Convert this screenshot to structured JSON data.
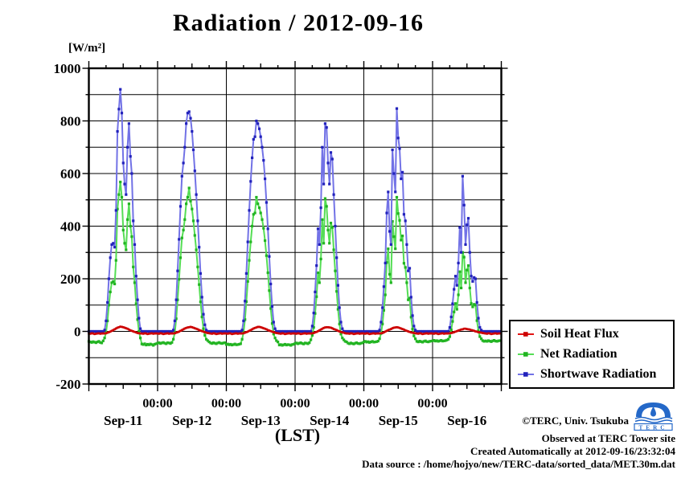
{
  "title": "Radiation / 2012-09-16",
  "y_axis": {
    "unit": "[W/m²]",
    "ticks": [
      1000,
      800,
      600,
      400,
      200,
      0,
      -200
    ],
    "max": 1000,
    "min": -200,
    "minor_step": 100
  },
  "x_axis": {
    "time_labels": [
      "00:00",
      "00:00",
      "00:00",
      "00:00",
      "00:00"
    ],
    "day_labels": [
      "Sep-11",
      "Sep-12",
      "Sep-13",
      "Sep-14",
      "Sep-15",
      "Sep-16"
    ],
    "axis_label": "(LST)"
  },
  "legend": {
    "items": [
      {
        "label": "Soil Heat Flux",
        "line_color": "#e21313",
        "marker_color": "#cc0000"
      },
      {
        "label": "Net Radiation",
        "line_color": "#55dd55",
        "marker_color": "#22b422"
      },
      {
        "label": "Shortwave Radiation",
        "line_color": "#7272e6",
        "marker_color": "#2222bb"
      }
    ]
  },
  "credits": {
    "copyright": "©TERC, Univ. Tsukuba",
    "observed": "Observed at TERC Tower site",
    "created": "Created Automatically at 2012-09-16/23:32:04",
    "source": "Data source : /home/hojyo/new/TERC-data/sorted_data/MET.30m.dat",
    "logo_text": "TERC"
  },
  "chart_data": {
    "type": "line",
    "title": "Radiation / 2012-09-16",
    "ylabel": "[W/m²]",
    "xlabel": "(LST)",
    "ylim": [
      -200,
      1000
    ],
    "x_range_hours": [
      0,
      144
    ],
    "sample_interval_hours": 0.5,
    "grid": "on",
    "legend_position": "outside-right-bottom",
    "series_meta": [
      {
        "name": "Net Radiation",
        "key": "net",
        "line_color": "#55dd55",
        "marker_color": "#22b422",
        "line_width": 2,
        "marker_size": 3.2
      },
      {
        "name": "Shortwave Radiation",
        "key": "shortwave",
        "line_color": "#7272e6",
        "marker_color": "#2222bb",
        "line_width": 2,
        "marker_size": 3.2
      },
      {
        "name": "Soil Heat Flux",
        "key": "soil",
        "line_color": "#e21313",
        "marker_color": "#cc0000",
        "line_width": 2.6,
        "marker_size": 2.6
      }
    ],
    "days": [
      {
        "date": "Sep-11",
        "shortwave": [
          0,
          0,
          0,
          0,
          0,
          0,
          0,
          0,
          0,
          0,
          0,
          5,
          40,
          110,
          200,
          280,
          330,
          335,
          320,
          460,
          760,
          845,
          920,
          830,
          640,
          560,
          520,
          700,
          790,
          665,
          600,
          420,
          330,
          210,
          120,
          50,
          10,
          0,
          0,
          0,
          0,
          0,
          0,
          0,
          0,
          0,
          0,
          0
        ],
        "net": [
          -38,
          -40,
          -42,
          -39,
          -41,
          -43,
          -40,
          -38,
          -42,
          -44,
          -36,
          -25,
          -5,
          40,
          100,
          150,
          185,
          190,
          180,
          270,
          465,
          520,
          568,
          510,
          385,
          335,
          310,
          425,
          485,
          400,
          360,
          245,
          185,
          105,
          45,
          0,
          -25,
          -48,
          -50,
          -47,
          -52,
          -49,
          -51,
          -48,
          -50,
          -53,
          -49,
          -47
        ],
        "soil": [
          -8,
          -9,
          -7,
          -8,
          -10,
          -9,
          -8,
          -7,
          -9,
          -8,
          -8,
          -8,
          -7,
          -5,
          -3,
          -1,
          2,
          5,
          8,
          11,
          14,
          16,
          18,
          17,
          16,
          14,
          12,
          10,
          7,
          4,
          2,
          0,
          -2,
          -4,
          -6,
          -7,
          -8,
          -8,
          -9,
          -7,
          -8,
          -10,
          -9,
          -8,
          -7,
          -9,
          -8,
          -8
        ]
      },
      {
        "date": "Sep-12",
        "shortwave": [
          0,
          0,
          0,
          0,
          0,
          0,
          0,
          0,
          0,
          0,
          0,
          5,
          40,
          120,
          230,
          350,
          475,
          590,
          640,
          700,
          790,
          830,
          835,
          810,
          760,
          690,
          610,
          520,
          420,
          320,
          220,
          130,
          65,
          25,
          5,
          0,
          0,
          0,
          0,
          0,
          0,
          0,
          0,
          0,
          0,
          0,
          0,
          0
        ],
        "net": [
          -45,
          -43,
          -46,
          -44,
          -42,
          -45,
          -47,
          -43,
          -44,
          -46,
          -42,
          -30,
          -5,
          48,
          120,
          198,
          280,
          355,
          385,
          425,
          485,
          510,
          545,
          495,
          465,
          420,
          365,
          310,
          245,
          178,
          112,
          55,
          10,
          -15,
          -30,
          -35,
          -40,
          -44,
          -46,
          -43,
          -45,
          -47,
          -44,
          -42,
          -45,
          -46,
          -44,
          -43
        ],
        "soil": [
          -8,
          -9,
          -7,
          -8,
          -10,
          -9,
          -8,
          -7,
          -9,
          -8,
          -8,
          -8,
          -7,
          -5,
          -3,
          -1,
          2,
          5,
          8,
          11,
          13,
          15,
          16,
          17,
          16,
          14,
          12,
          10,
          8,
          5,
          3,
          1,
          -1,
          -3,
          -5,
          -6,
          -7,
          -8,
          -9,
          -7,
          -8,
          -10,
          -9,
          -8,
          -7,
          -9,
          -8,
          -8
        ]
      },
      {
        "date": "Sep-13",
        "shortwave": [
          0,
          0,
          0,
          0,
          0,
          0,
          0,
          0,
          0,
          0,
          0,
          5,
          40,
          115,
          220,
          340,
          460,
          570,
          660,
          730,
          740,
          800,
          790,
          770,
          740,
          700,
          650,
          580,
          490,
          390,
          285,
          180,
          95,
          35,
          10,
          0,
          0,
          0,
          0,
          0,
          0,
          0,
          0,
          0,
          0,
          0,
          0,
          0
        ],
        "net": [
          -50,
          -48,
          -51,
          -49,
          -52,
          -50,
          -48,
          -51,
          -50,
          -49,
          -47,
          -30,
          -5,
          45,
          113,
          190,
          270,
          340,
          400,
          445,
          450,
          510,
          485,
          470,
          450,
          425,
          392,
          345,
          288,
          223,
          155,
          87,
          30,
          -10,
          -25,
          -35,
          -40,
          -52,
          -50,
          -53,
          -51,
          -49,
          -52,
          -50,
          -51,
          -53,
          -50,
          -49
        ],
        "soil": [
          -8,
          -9,
          -7,
          -8,
          -10,
          -9,
          -8,
          -7,
          -9,
          -8,
          -8,
          -8,
          -7,
          -5,
          -3,
          -1,
          2,
          5,
          8,
          11,
          13,
          15,
          17,
          17,
          16,
          14,
          12,
          10,
          8,
          5,
          3,
          1,
          -1,
          -3,
          -5,
          -6,
          -7,
          -8,
          -9,
          -7,
          -8,
          -10,
          -9,
          -8,
          -7,
          -9,
          -8,
          -8
        ]
      },
      {
        "date": "Sep-14",
        "shortwave": [
          0,
          0,
          0,
          0,
          0,
          0,
          0,
          0,
          0,
          0,
          0,
          0,
          20,
          70,
          150,
          250,
          390,
          330,
          470,
          700,
          560,
          790,
          775,
          640,
          560,
          680,
          655,
          520,
          400,
          280,
          175,
          90,
          35,
          10,
          0,
          0,
          0,
          0,
          0,
          0,
          0,
          0,
          0,
          0,
          0,
          0,
          0,
          0
        ],
        "net": [
          -46,
          -44,
          -47,
          -45,
          -43,
          -46,
          -48,
          -44,
          -45,
          -47,
          -43,
          -32,
          -15,
          15,
          68,
          132,
          223,
          185,
          275,
          425,
          335,
          505,
          475,
          385,
          335,
          412,
          395,
          310,
          230,
          152,
          84,
          28,
          -10,
          -25,
          -32,
          -38,
          -40,
          -45,
          -47,
          -44,
          -46,
          -48,
          -45,
          -43,
          -46,
          -47,
          -45,
          -44
        ],
        "soil": [
          -8,
          -9,
          -7,
          -8,
          -10,
          -9,
          -8,
          -7,
          -9,
          -8,
          -8,
          -8,
          -7,
          -6,
          -4,
          -2,
          1,
          4,
          7,
          10,
          13,
          15,
          16,
          16,
          15,
          14,
          12,
          9,
          7,
          5,
          2,
          0,
          -2,
          -4,
          -5,
          -7,
          -8,
          -8,
          -9,
          -7,
          -8,
          -10,
          -9,
          -8,
          -7,
          -9,
          -8,
          -8
        ]
      },
      {
        "date": "Sep-15",
        "shortwave": [
          0,
          0,
          0,
          0,
          0,
          0,
          0,
          0,
          0,
          0,
          0,
          5,
          35,
          90,
          170,
          260,
          450,
          530,
          380,
          330,
          690,
          600,
          530,
          847,
          735,
          695,
          580,
          605,
          445,
          420,
          330,
          230,
          240,
          130,
          60,
          20,
          5,
          0,
          0,
          0,
          0,
          0,
          0,
          0,
          0,
          0,
          0,
          0
        ],
        "net": [
          -40,
          -38,
          -41,
          -39,
          -42,
          -40,
          -38,
          -41,
          -40,
          -39,
          -37,
          -28,
          -8,
          28,
          80,
          139,
          262,
          314,
          217,
          185,
          418,
          360,
          314,
          510,
          448,
          422,
          347,
          363,
          259,
          243,
          185,
          120,
          126,
          54,
          9,
          -17,
          -28,
          -38,
          -40,
          -37,
          -39,
          -41,
          -38,
          -36,
          -39,
          -40,
          -38,
          -37
        ],
        "soil": [
          -8,
          -9,
          -7,
          -8,
          -10,
          -9,
          -8,
          -7,
          -9,
          -8,
          -8,
          -8,
          -7,
          -6,
          -4,
          -1,
          2,
          5,
          7,
          9,
          12,
          14,
          15,
          16,
          15,
          13,
          11,
          9,
          7,
          4,
          2,
          0,
          -2,
          -4,
          -5,
          -6,
          -7,
          -8,
          -9,
          -7,
          -8,
          -10,
          -9,
          -8,
          -7,
          -9,
          -8,
          -8
        ]
      },
      {
        "date": "Sep-16",
        "shortwave": [
          0,
          0,
          0,
          0,
          0,
          0,
          0,
          0,
          0,
          0,
          0,
          0,
          15,
          55,
          105,
          160,
          210,
          175,
          260,
          395,
          300,
          590,
          480,
          330,
          405,
          430,
          300,
          210,
          190,
          205,
          200,
          110,
          50,
          15,
          5,
          0,
          0,
          0,
          0,
          0,
          0,
          0,
          0,
          0,
          0,
          0,
          0,
          0
        ],
        "net": [
          -36,
          -34,
          -37,
          -35,
          -38,
          -36,
          -34,
          -37,
          -36,
          -35,
          -33,
          -30,
          -20,
          6,
          38,
          74,
          106,
          84,
          139,
          227,
          165,
          300,
          282,
          185,
          233,
          250,
          165,
          106,
          93,
          103,
          100,
          41,
          2,
          -20,
          -28,
          -35,
          -38,
          -36,
          -38,
          -35,
          -37,
          -39,
          -36,
          -34,
          -37,
          -38,
          -36,
          -35
        ],
        "soil": [
          -8,
          -9,
          -7,
          -8,
          -10,
          -9,
          -8,
          -7,
          -9,
          -8,
          -8,
          -8,
          -7,
          -6,
          -5,
          -3,
          -1,
          1,
          3,
          5,
          7,
          8,
          10,
          10,
          9,
          8,
          7,
          5,
          4,
          2,
          0,
          -1,
          -3,
          -4,
          -5,
          -6,
          -7,
          -8,
          -9,
          -7,
          -8,
          -10,
          -9,
          -8,
          -7,
          -9,
          -8,
          -8
        ]
      }
    ]
  }
}
